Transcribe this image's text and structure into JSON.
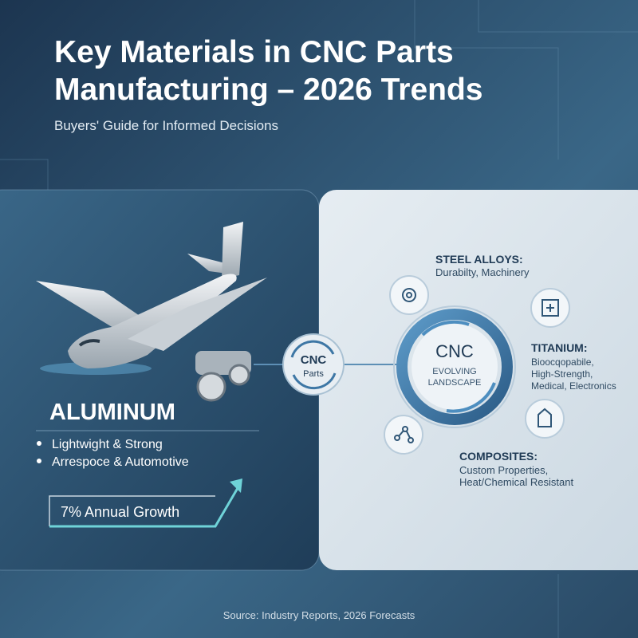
{
  "header": {
    "title_lines": [
      "Key Materials in CNC Parts",
      "Manufacturing – 2026 Trends"
    ],
    "subtitle": "Buyers' Guide for Informed Decisions"
  },
  "aluminum": {
    "title": "ALUMINUM",
    "bullets": [
      "Lightwight & Strong",
      "Arrespoce & Automotive"
    ],
    "growth": "7% Annual Growth"
  },
  "hub": {
    "small_label_lines": [
      "CNC",
      "Parts"
    ],
    "center_lines": [
      "CNC",
      "EVOLVING",
      "LANDSCAPE"
    ]
  },
  "materials": [
    {
      "title": "STEEL ALLOYS:",
      "lines": [
        "Durabilty, Machinery"
      ]
    },
    {
      "title": "TITANIUM:",
      "lines": [
        "Bioocqopabile,",
        "High-Strength,",
        "Medical, Electronics"
      ]
    },
    {
      "title": "COMPOSITES:",
      "lines": [
        "Custom Properties,",
        "Heat/Chemical Resistant"
      ]
    }
  ],
  "footer": {
    "source": "Source: Industry Reports, 2026 Forecasts"
  }
}
